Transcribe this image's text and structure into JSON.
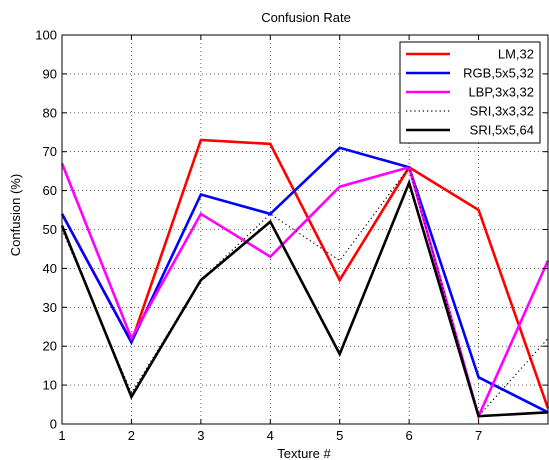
{
  "chart_data": {
    "type": "line",
    "title": "Confusion Rate",
    "xlabel": "Texture #",
    "ylabel": "Confusion (%)",
    "xlim": [
      1,
      8
    ],
    "ylim": [
      0,
      100
    ],
    "xticks": [
      1,
      2,
      3,
      4,
      5,
      6,
      7
    ],
    "yticks": [
      0,
      10,
      20,
      30,
      40,
      50,
      60,
      70,
      80,
      90,
      100
    ],
    "grid": true,
    "legend_position": "top-right",
    "x": [
      1,
      2,
      3,
      4,
      5,
      6,
      7,
      8
    ],
    "series": [
      {
        "name": "LM,32",
        "color": "#ff0000",
        "dash": "solid",
        "values": [
          54,
          21,
          73,
          72,
          37,
          66,
          55,
          4
        ]
      },
      {
        "name": "RGB,5x5,32",
        "color": "#0000ff",
        "dash": "solid",
        "values": [
          54,
          21,
          59,
          54,
          71,
          66,
          12,
          3
        ]
      },
      {
        "name": "LBP,3x3,32",
        "color": "#ff00ff",
        "dash": "solid",
        "values": [
          67,
          22,
          54,
          43,
          61,
          66,
          2,
          42
        ]
      },
      {
        "name": "SRI,3x3,32",
        "color": "#000000",
        "dash": "dotted",
        "values": [
          50,
          8,
          37,
          54,
          42,
          66,
          2,
          22
        ]
      },
      {
        "name": "SRI,5x5,64",
        "color": "#000000",
        "dash": "solid",
        "values": [
          51,
          7,
          37,
          52,
          18,
          62,
          2,
          3
        ]
      }
    ]
  }
}
